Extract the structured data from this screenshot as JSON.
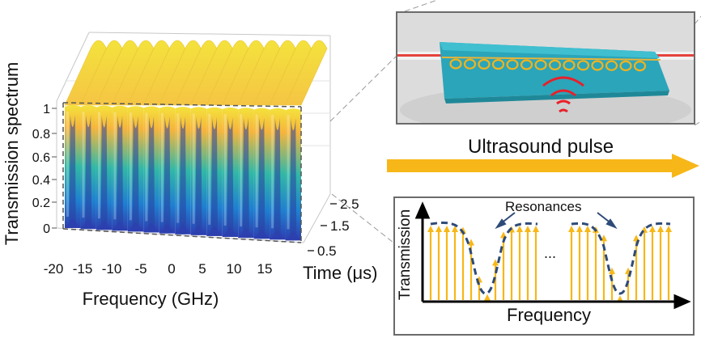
{
  "left_plot": {
    "ylabel": "Transmission spectrum",
    "xlabel": "Frequency (GHz)",
    "zlabel": "Time (μs)",
    "y_ticks": [
      "1",
      "0.8",
      "0.6",
      "0.4",
      "0.2",
      "0"
    ],
    "x_ticks": [
      "-20",
      "-15",
      "-10",
      "-5",
      "0",
      "5",
      "10",
      "15"
    ],
    "z_ticks": [
      "2.5",
      "1.5",
      "0.5"
    ],
    "resonance_count": 15,
    "colors": {
      "top": "#f4e23c",
      "upper": "#f6b53b",
      "mid": "#31b8a6",
      "lower": "#1f7fd0",
      "bottom": "#2d3fb0"
    }
  },
  "device": {
    "ring_count": 14,
    "colors": {
      "chip": "#2ba5b9",
      "fiber": "#e5433b",
      "ring": "#f0b31e",
      "waves": "#e8202a",
      "background": "#d9d9d9"
    }
  },
  "pulse": {
    "label": "Ultrasound pulse",
    "arrow_color": "#f7b718"
  },
  "spectrum": {
    "ylabel": "Transmission",
    "xlabel": "Frequency",
    "resonances_label": "Resonances",
    "ellipsis": "...",
    "colors": {
      "lines": "#f7b718",
      "curve": "#2e4b78",
      "axes": "#000000"
    }
  }
}
